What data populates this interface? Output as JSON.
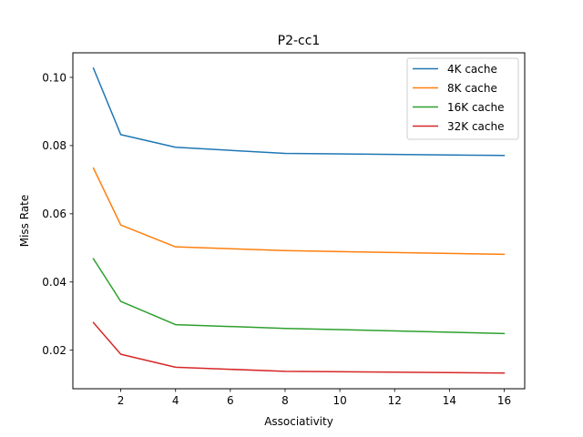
{
  "chart_data": {
    "type": "line",
    "title": "P2-cc1",
    "xlabel": "Associativity",
    "ylabel": "Miss Rate",
    "x": [
      1,
      2,
      4,
      8,
      16
    ],
    "xlim": [
      0.25,
      16.75
    ],
    "ylim": [
      0.0087,
      0.1072
    ],
    "xticks": [
      2,
      4,
      6,
      8,
      10,
      12,
      14,
      16
    ],
    "xtick_labels": [
      "2",
      "4",
      "6",
      "8",
      "10",
      "12",
      "14",
      "16"
    ],
    "yticks": [
      0.02,
      0.04,
      0.06,
      0.08,
      0.1
    ],
    "ytick_labels": [
      "0.02",
      "0.04",
      "0.06",
      "0.08",
      "0.10"
    ],
    "grid": false,
    "legend_position": "top-right",
    "series": [
      {
        "name": "4K cache",
        "color": "#1f77b4",
        "values": [
          0.1027,
          0.0832,
          0.0795,
          0.0777,
          0.0771
        ]
      },
      {
        "name": "8K cache",
        "color": "#ff7f0e",
        "values": [
          0.0734,
          0.0567,
          0.0503,
          0.0492,
          0.0481
        ]
      },
      {
        "name": "16K cache",
        "color": "#2ca02c",
        "values": [
          0.0468,
          0.0343,
          0.0275,
          0.0264,
          0.0249
        ]
      },
      {
        "name": "32K cache",
        "color": "#d62728",
        "values": [
          0.0281,
          0.0188,
          0.015,
          0.0138,
          0.0133
        ]
      }
    ]
  }
}
